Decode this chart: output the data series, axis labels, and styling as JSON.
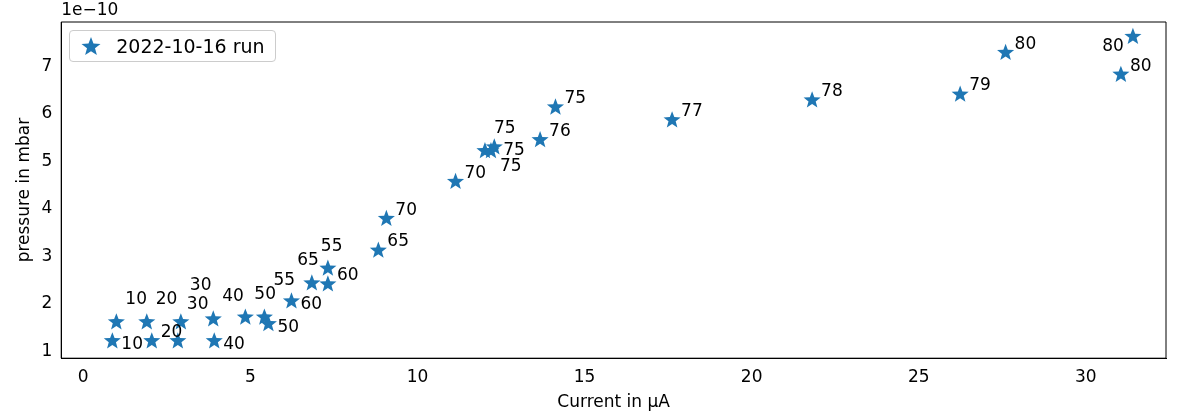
{
  "chart_data": {
    "type": "scatter",
    "xlabel": "Current in µA",
    "ylabel": "pressure in mbar",
    "annotations": [
      "1e−10",
      {
        "text": "10",
        "x": 0.87,
        "y": 1.21
      },
      {
        "text": "10",
        "x": 0.99,
        "y": 1.61
      },
      {
        "text": "20",
        "x": 1.9,
        "y": 1.61
      },
      {
        "text": "20",
        "x": 2.05,
        "y": 1.21
      },
      {
        "text": "30",
        "x": 2.83,
        "y": 1.21
      },
      {
        "text": "30",
        "x": 2.92,
        "y": 1.61
      },
      {
        "text": "40",
        "x": 3.89,
        "y": 1.67
      },
      {
        "text": "40",
        "x": 3.92,
        "y": 1.21
      },
      {
        "text": "50",
        "x": 4.85,
        "y": 1.71
      },
      {
        "text": "55",
        "x": 5.42,
        "y": 1.71
      },
      {
        "text": "50",
        "x": 5.54,
        "y": 1.57
      },
      {
        "text": "60",
        "x": 6.23,
        "y": 2.05
      },
      {
        "text": "55",
        "x": 6.84,
        "y": 2.43
      },
      {
        "text": "60",
        "x": 7.32,
        "y": 2.41
      },
      {
        "text": "65",
        "x": 7.32,
        "y": 2.74
      },
      {
        "text": "65",
        "x": 8.83,
        "y": 3.12
      },
      {
        "text": "70",
        "x": 9.07,
        "y": 3.79
      },
      {
        "text": "70",
        "x": 11.14,
        "y": 4.57
      },
      {
        "text": "75",
        "x": 12.02,
        "y": 5.22
      },
      {
        "text": "75",
        "x": 12.2,
        "y": 5.22
      },
      {
        "text": "75",
        "x": 12.3,
        "y": 5.3
      },
      {
        "text": "76",
        "x": 13.67,
        "y": 5.45
      },
      {
        "text": "75",
        "x": 14.13,
        "y": 6.14
      },
      {
        "text": "77",
        "x": 17.62,
        "y": 5.87
      },
      {
        "text": "78",
        "x": 21.81,
        "y": 6.29
      },
      {
        "text": "79",
        "x": 26.24,
        "y": 6.41
      },
      {
        "text": "80",
        "x": 27.6,
        "y": 7.29
      },
      {
        "text": "80",
        "x": 31.05,
        "y": 6.83
      },
      {
        "text": "80",
        "x": 31.41,
        "y": 7.63
      }
    ],
    "series": [
      {
        "name": "2022-10-16 run",
        "color": "#1f77b4",
        "x": [
          0.87,
          0.99,
          1.9,
          2.05,
          2.83,
          2.92,
          3.89,
          3.92,
          4.85,
          5.42,
          5.54,
          6.23,
          6.84,
          7.32,
          7.32,
          8.83,
          9.07,
          11.14,
          12.02,
          12.2,
          12.3,
          13.67,
          14.13,
          17.62,
          21.81,
          26.24,
          27.6,
          31.05,
          31.41
        ],
        "values": [
          1.21,
          1.61,
          1.61,
          1.21,
          1.21,
          1.61,
          1.67,
          1.21,
          1.71,
          1.71,
          1.57,
          2.05,
          2.43,
          2.41,
          2.74,
          3.12,
          3.79,
          4.57,
          5.22,
          5.22,
          5.3,
          5.45,
          6.14,
          5.87,
          6.29,
          6.41,
          7.29,
          6.83,
          7.63
        ]
      }
    ],
    "xlim": [
      -0.66,
      32.4
    ],
    "xticks": [
      0,
      5,
      10,
      15,
      20,
      25,
      30
    ],
    "ylim": [
      0.85,
      7.94
    ],
    "yticks": [
      1,
      2,
      3,
      4,
      5,
      6,
      7
    ],
    "legend": "top left",
    "marker": "star"
  }
}
